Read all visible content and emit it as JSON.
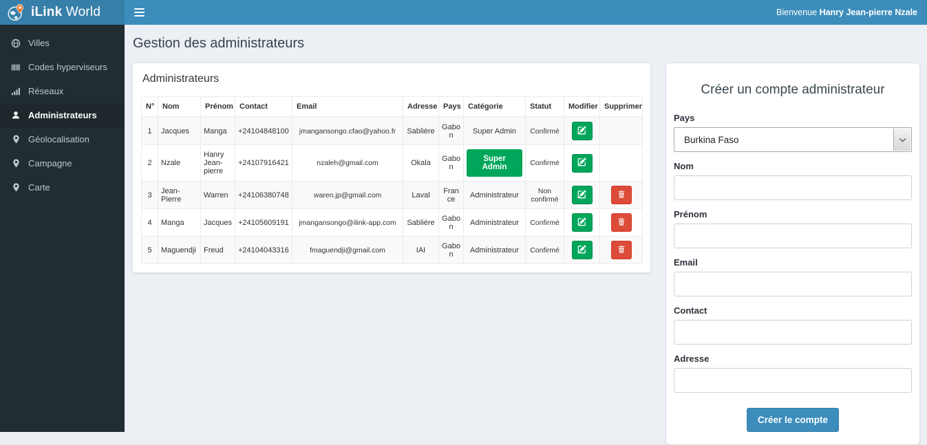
{
  "header": {
    "brand_bold": "iLink",
    "brand_regular": " World",
    "welcome_prefix": "Bienvenue ",
    "welcome_name": "Hanry Jean-pierre Nzale"
  },
  "sidebar": {
    "items": [
      {
        "label": "Villes",
        "icon": "globe-icon",
        "active": false
      },
      {
        "label": "Codes hyperviseurs",
        "icon": "barcode-icon",
        "active": false
      },
      {
        "label": "Réseaux",
        "icon": "signal-icon",
        "active": false
      },
      {
        "label": "Administrateurs",
        "icon": "user-icon",
        "active": true
      },
      {
        "label": "Géolocalisation",
        "icon": "map-marker-icon",
        "active": false
      },
      {
        "label": "Campagne",
        "icon": "map-marker-icon",
        "active": false
      },
      {
        "label": "Carte",
        "icon": "map-marker-icon",
        "active": false
      }
    ]
  },
  "main": {
    "page_title": "Gestion des administrateurs",
    "panel_title": "Administrateurs",
    "table": {
      "headers": [
        "N°",
        "Nom",
        "Prénom",
        "Contact",
        "Email",
        "Adresse",
        "Pays",
        "Catégorie",
        "Statut",
        "Modifier",
        "Supprimer"
      ],
      "rows": [
        {
          "num": "1",
          "nom": "Jacques",
          "prenom": "Manga",
          "contact": "+24104848100",
          "email": "jmangansongo.cfao@yahoo.fr",
          "adresse": "Sablière",
          "pays": "Gabon",
          "categorie": "Super Admin",
          "categorie_style": "text",
          "statut": "Confirmé",
          "can_delete": false
        },
        {
          "num": "2",
          "nom": "Nzale",
          "prenom": "Hanry Jean-pierre",
          "contact": "+24107916421",
          "email": "nzaleh@gmail.com",
          "adresse": "Okala",
          "pays": "Gabon",
          "categorie": "Super Admin",
          "categorie_style": "button",
          "statut": "Confirmé",
          "can_delete": false
        },
        {
          "num": "3",
          "nom": "Jean-Pierre",
          "prenom": "Warren",
          "contact": "+24106380748",
          "email": "waren.jp@gmail.com",
          "adresse": "Laval",
          "pays": "France",
          "categorie": "Administrateur",
          "categorie_style": "text",
          "statut": "Non confirmé",
          "can_delete": true
        },
        {
          "num": "4",
          "nom": "Manga",
          "prenom": "Jacques",
          "contact": "+24105609191",
          "email": "jmangansongo@ilink-app.com",
          "adresse": "Sablière",
          "pays": "Gabon",
          "categorie": "Administrateur",
          "categorie_style": "text",
          "statut": "Confirmé",
          "can_delete": true
        },
        {
          "num": "5",
          "nom": "Maguendji",
          "prenom": "Freud",
          "contact": "+24104043316",
          "email": "fmaguendji@gmail.com",
          "adresse": "IAI",
          "pays": "Gabon",
          "categorie": "Administrateur",
          "categorie_style": "text",
          "statut": "Confirmé",
          "can_delete": true
        }
      ],
      "edit_icon": "pencil-square-icon",
      "delete_icon": "trash-icon"
    }
  },
  "form": {
    "title": "Créer un compte administrateur",
    "fields": [
      {
        "label": "Pays",
        "type": "select",
        "value": "Burkina Faso"
      },
      {
        "label": "Nom",
        "type": "text",
        "value": "",
        "placeholder": ""
      },
      {
        "label": "Prénom",
        "type": "text",
        "value": "",
        "placeholder": ""
      },
      {
        "label": "Email",
        "type": "text",
        "value": "",
        "placeholder": ""
      },
      {
        "label": "Contact",
        "type": "text",
        "value": "",
        "placeholder": ""
      },
      {
        "label": "Adresse",
        "type": "text",
        "value": "",
        "placeholder": ""
      }
    ],
    "submit_label": "Créer le compte"
  },
  "colors": {
    "navbar": "#3c8dbc",
    "navbar_logo": "#367fa9",
    "sidebar_bg": "#222d32",
    "sidebar_active_bg": "#1e282c",
    "success_green": "#00a65a",
    "danger_red": "#dd4b39",
    "primary_blue": "#3c8dbc",
    "content_bg": "#ecf0f5",
    "pin_orange": "#e67722"
  }
}
